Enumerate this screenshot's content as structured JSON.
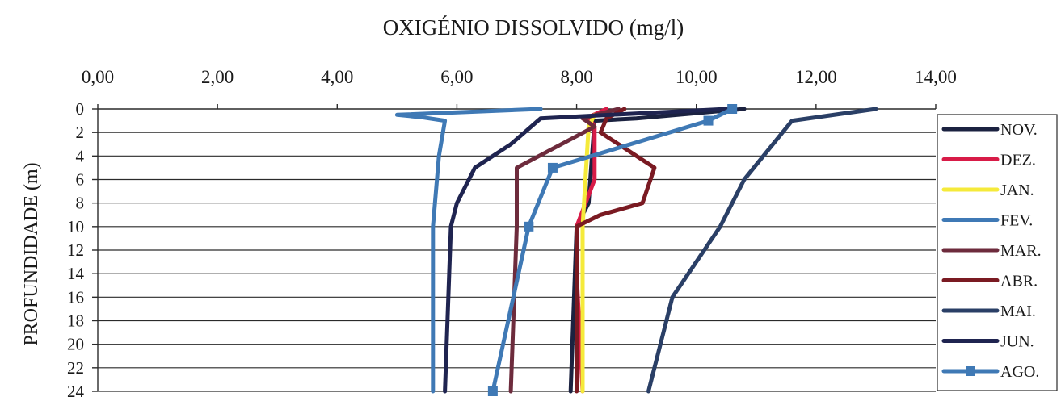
{
  "chart_data": {
    "type": "line",
    "title": "OXIGÉNIO DISSOLVIDO (mg/l)",
    "xlabel": "OXIGÉNIO DISSOLVIDO (mg/l)",
    "ylabel": "PROFUNDIDADE (m)",
    "x_axis_position": "top",
    "y_axis_inverted": true,
    "xlim": [
      0,
      14
    ],
    "ylim": [
      0,
      24
    ],
    "x_ticks": [
      "0,00",
      "2,00",
      "4,00",
      "6,00",
      "8,00",
      "10,00",
      "12,00",
      "14,00"
    ],
    "y_ticks": [
      "0",
      "2",
      "4",
      "6",
      "8",
      "10",
      "12",
      "14",
      "16",
      "18",
      "20",
      "22",
      "24"
    ],
    "grid": true,
    "legend_position": "right",
    "series": [
      {
        "name": "NOV.",
        "color": "#1b2240",
        "marker": "none",
        "points": [
          [
            10.8,
            0
          ],
          [
            9.0,
            0.8
          ],
          [
            8.3,
            1.0
          ],
          [
            8.2,
            8
          ],
          [
            8.0,
            10
          ],
          [
            7.9,
            24
          ]
        ]
      },
      {
        "name": "DEZ.",
        "color": "#d81b47",
        "marker": "none",
        "points": [
          [
            8.5,
            0
          ],
          [
            8.2,
            0.7
          ],
          [
            8.3,
            1.5
          ],
          [
            8.3,
            6
          ],
          [
            8.0,
            10
          ],
          [
            8.0,
            14
          ],
          [
            8.1,
            24
          ]
        ]
      },
      {
        "name": "JAN.",
        "color": "#f5ea3a",
        "marker": "none",
        "points": [
          [
            8.3,
            0.5
          ],
          [
            8.2,
            1.5
          ],
          [
            8.1,
            10
          ],
          [
            8.1,
            24
          ]
        ]
      },
      {
        "name": "FEV.",
        "color": "#3f79b5",
        "marker": "none",
        "points": [
          [
            7.4,
            0
          ],
          [
            5.0,
            0.5
          ],
          [
            5.4,
            0.7
          ],
          [
            5.8,
            1.0
          ],
          [
            5.7,
            4
          ],
          [
            5.6,
            10
          ],
          [
            5.6,
            24
          ]
        ]
      },
      {
        "name": "MAR.",
        "color": "#6d2b3c",
        "marker": "none",
        "points": [
          [
            8.7,
            0
          ],
          [
            8.1,
            0.8
          ],
          [
            8.3,
            1.5
          ],
          [
            7.0,
            5
          ],
          [
            7.0,
            10
          ],
          [
            6.9,
            24
          ]
        ]
      },
      {
        "name": "ABR.",
        "color": "#7a1a22",
        "marker": "none",
        "points": [
          [
            8.8,
            0
          ],
          [
            8.5,
            0.8
          ],
          [
            8.4,
            2
          ],
          [
            9.3,
            5
          ],
          [
            9.1,
            8
          ],
          [
            8.4,
            9
          ],
          [
            8.0,
            10
          ],
          [
            8.0,
            24
          ]
        ]
      },
      {
        "name": "MAI.",
        "color": "#2a3f66",
        "marker": "none",
        "points": [
          [
            13.0,
            0
          ],
          [
            11.6,
            1.0
          ],
          [
            10.8,
            6
          ],
          [
            10.4,
            10
          ],
          [
            9.6,
            16
          ],
          [
            9.2,
            24
          ]
        ]
      },
      {
        "name": "JUN.",
        "color": "#1f2450",
        "marker": "none",
        "points": [
          [
            10.5,
            0
          ],
          [
            7.4,
            0.8
          ],
          [
            6.9,
            3.0
          ],
          [
            6.3,
            5
          ],
          [
            6.0,
            8
          ],
          [
            5.9,
            10
          ],
          [
            5.8,
            24
          ]
        ]
      },
      {
        "name": "AGO.",
        "color": "#3f79b5",
        "marker": "square",
        "points": [
          [
            10.6,
            0
          ],
          [
            10.2,
            1.0
          ],
          [
            7.6,
            5
          ],
          [
            7.2,
            10
          ],
          [
            6.6,
            24
          ]
        ]
      }
    ]
  }
}
